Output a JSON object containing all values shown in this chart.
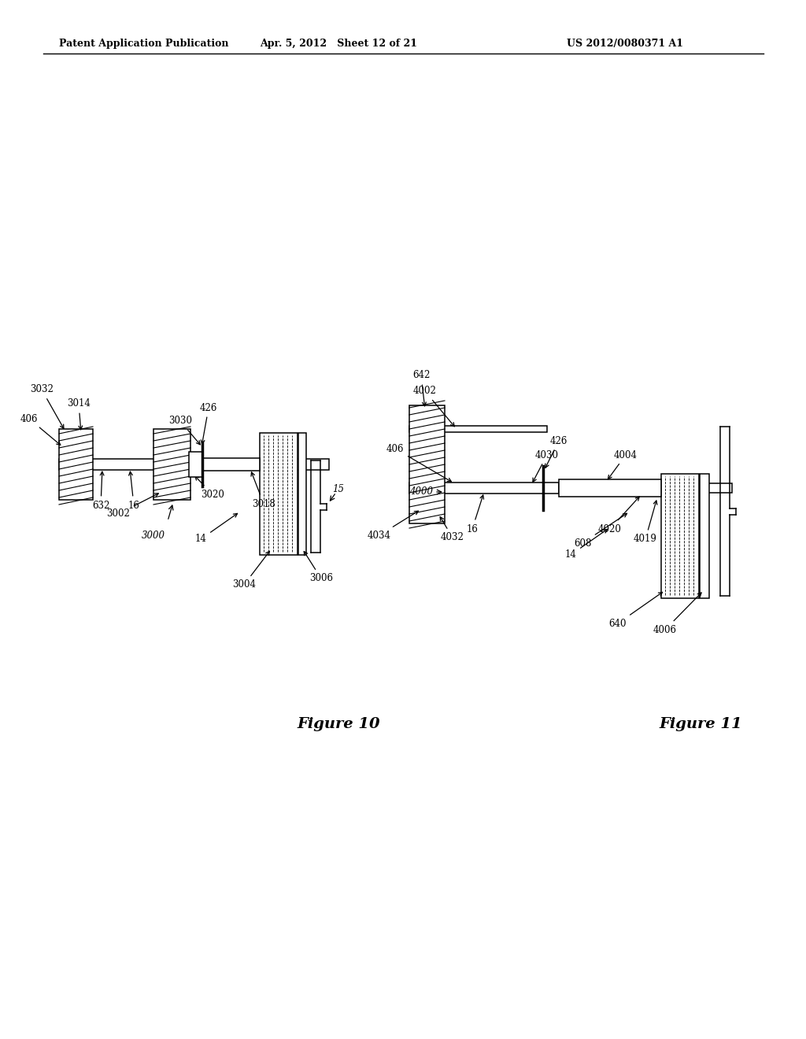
{
  "bg_color": "#ffffff",
  "header_left": "Patent Application Publication",
  "header_center": "Apr. 5, 2012   Sheet 12 of 21",
  "header_right": "US 2012/0080371 A1",
  "fig10_label": "Figure 10",
  "fig11_label": "Figure 11"
}
